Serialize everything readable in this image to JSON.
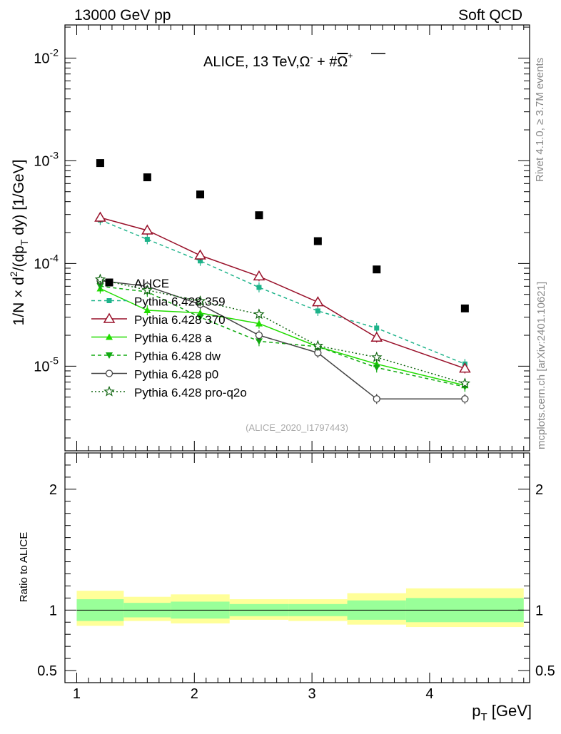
{
  "header": {
    "left": "13000 GeV pp",
    "right": "Soft QCD"
  },
  "side": {
    "rivet": "Rivet 4.1.0, ≥ 3.7M events",
    "url": "mcplots.cern.ch [arXiv:2401.10621]"
  },
  "colors": {
    "data": "#000000",
    "p359": "#1db38a",
    "p370": "#99112a",
    "pa": "#22dd00",
    "pdw": "#11aa11",
    "pp0": "#444444",
    "pq2o": "#116611",
    "band_inner": "#99ff99",
    "band_outer": "#ffff99"
  },
  "chart_data": [
    {
      "type": "scatter",
      "title_main": "ALICE, 13 TeV,",
      "title_omega": "Ω",
      "title_sup1": "-",
      "title_plus": " + #",
      "title_omegabar": "Ω",
      "title_sup2": "+",
      "analysis_id": "(ALICE_2020_I1797443)",
      "ylabel": {
        "p1": "1/N × d",
        "s1": "2",
        "p2": "/(dp",
        "s2": "T",
        "p3": " dy) [1/GeV]"
      },
      "yscale": "log",
      "xlim": [
        0.9,
        4.85
      ],
      "ylim": [
        1.5e-06,
        0.021
      ],
      "yticks": [
        {
          "base": "10",
          "exp": "-2",
          "value": 0.01
        },
        {
          "base": "10",
          "exp": "-3",
          "value": 0.001
        },
        {
          "base": "10",
          "exp": "-4",
          "value": 0.0001
        },
        {
          "base": "10",
          "exp": "-5",
          "value": 1e-05
        }
      ],
      "series": [
        {
          "key": "data",
          "name": "ALICE",
          "marker": "square",
          "line": "none",
          "x": [
            1.2,
            1.6,
            2.05,
            2.55,
            3.05,
            3.55,
            4.3
          ],
          "y": [
            0.00095,
            0.00069,
            0.00047,
            0.000295,
            0.000165,
            8.75e-05,
            3.65e-05
          ]
        },
        {
          "key": "p359",
          "name": "Pythia 6.428 359",
          "marker": "small-square",
          "line": "dashed",
          "x": [
            1.2,
            1.6,
            2.05,
            2.55,
            3.05,
            3.55,
            4.3
          ],
          "y": [
            0.000265,
            0.000172,
            0.000106,
            5.85e-05,
            3.45e-05,
            2.35e-05,
            1.05e-05
          ]
        },
        {
          "key": "p370",
          "name": "Pythia 6.428 370",
          "marker": "open-triangle",
          "line": "solid",
          "x": [
            1.2,
            1.6,
            2.05,
            2.55,
            3.05,
            3.55,
            4.3
          ],
          "y": [
            0.00028,
            0.00021,
            0.00012,
            7.5e-05,
            4.2e-05,
            1.9e-05,
            9.5e-06
          ]
        },
        {
          "key": "pa",
          "name": "Pythia 6.428 a",
          "marker": "filled-triangle",
          "line": "solid",
          "x": [
            1.2,
            1.6,
            2.05,
            2.55,
            3.05,
            3.55,
            4.3
          ],
          "y": [
            5.7e-05,
            3.5e-05,
            3.3e-05,
            2.6e-05,
            1.55e-05,
            1.05e-05,
            6.5e-06
          ]
        },
        {
          "key": "pdw",
          "name": "Pythia 6.428 dw",
          "marker": "filled-triangle-down",
          "line": "dashed",
          "x": [
            1.2,
            1.6,
            2.05,
            2.55,
            3.05,
            3.55,
            4.3
          ],
          "y": [
            6e-05,
            5.3e-05,
            3e-05,
            1.75e-05,
            1.55e-05,
            9.7e-06,
            6.3e-06
          ]
        },
        {
          "key": "pp0",
          "name": "Pythia 6.428 p0",
          "marker": "open-circle",
          "line": "solid",
          "x": [
            1.2,
            1.6,
            2.05,
            2.55,
            3.05,
            3.55,
            4.3
          ],
          "y": [
            6.8e-05,
            6e-05,
            4e-05,
            2e-05,
            1.35e-05,
            4.8e-06,
            4.8e-06
          ]
        },
        {
          "key": "pq2o",
          "name": "Pythia 6.428 pro-q2o",
          "marker": "open-star",
          "line": "dotted",
          "x": [
            1.2,
            1.6,
            2.05,
            2.55,
            3.05,
            3.55,
            4.3
          ],
          "y": [
            7e-05,
            5.5e-05,
            4.3e-05,
            3.2e-05,
            1.58e-05,
            1.22e-05,
            6.8e-06
          ]
        }
      ]
    },
    {
      "type": "area",
      "ylabel": "Ratio to ALICE",
      "xlabel_p": "p",
      "xlabel_sub": "T",
      "xlabel_unit": " [GeV]",
      "xlim": [
        0.9,
        4.85
      ],
      "ylim": [
        0.4,
        2.3
      ],
      "xticks": [
        "1",
        "2",
        "3",
        "4"
      ],
      "yticks": [
        "0.5",
        "1",
        "2"
      ],
      "bins": [
        {
          "lo": 1.0,
          "hi": 1.4,
          "inner": [
            0.91,
            1.09
          ],
          "outer": [
            0.87,
            1.16
          ]
        },
        {
          "lo": 1.4,
          "hi": 1.8,
          "inner": [
            0.94,
            1.06
          ],
          "outer": [
            0.91,
            1.11
          ]
        },
        {
          "lo": 1.8,
          "hi": 2.3,
          "inner": [
            0.93,
            1.07
          ],
          "outer": [
            0.89,
            1.13
          ]
        },
        {
          "lo": 2.3,
          "hi": 2.8,
          "inner": [
            0.95,
            1.05
          ],
          "outer": [
            0.92,
            1.09
          ]
        },
        {
          "lo": 2.8,
          "hi": 3.3,
          "inner": [
            0.95,
            1.05
          ],
          "outer": [
            0.91,
            1.09
          ]
        },
        {
          "lo": 3.3,
          "hi": 3.8,
          "inner": [
            0.92,
            1.08
          ],
          "outer": [
            0.88,
            1.14
          ]
        },
        {
          "lo": 3.8,
          "hi": 4.8,
          "inner": [
            0.9,
            1.1
          ],
          "outer": [
            0.86,
            1.18
          ]
        }
      ]
    }
  ]
}
